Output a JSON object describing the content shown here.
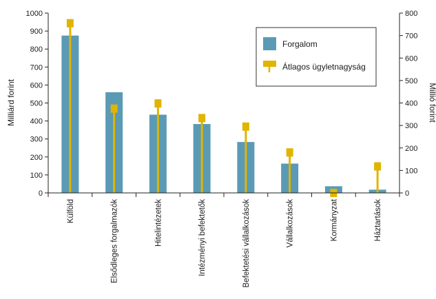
{
  "chart_data": {
    "type": "bar",
    "categories": [
      "Külföld",
      "Elsődleges forgalmazók",
      "Hitelintézetek",
      "Intézményi befektetők",
      "Befektetési vállalkozások",
      "Vállalkozások",
      "Kormányzat",
      "Háztartások"
    ],
    "series": [
      {
        "name": "Forgalom",
        "axis": "left",
        "type": "bar",
        "values": [
          875,
          560,
          435,
          383,
          283,
          163,
          37,
          18
        ]
      },
      {
        "name": "Átlagos ügyletnagyság",
        "axis": "right",
        "type": "lollipop",
        "values": [
          755,
          375,
          398,
          333,
          295,
          180,
          0,
          118
        ]
      }
    ],
    "ylabel": "Milliárd forint",
    "y2label": "Millió forint",
    "ylim": [
      0,
      1000
    ],
    "y2lim": [
      0,
      800
    ],
    "yticks": [
      0,
      100,
      200,
      300,
      400,
      500,
      600,
      700,
      800,
      900,
      1000
    ],
    "y2ticks": [
      0,
      100,
      200,
      300,
      400,
      500,
      600,
      700,
      800
    ],
    "grid": false,
    "legend": "top-right",
    "colors": {
      "bar": "#5b9ab5",
      "marker": "#e1b400",
      "axis": "#222222"
    }
  }
}
